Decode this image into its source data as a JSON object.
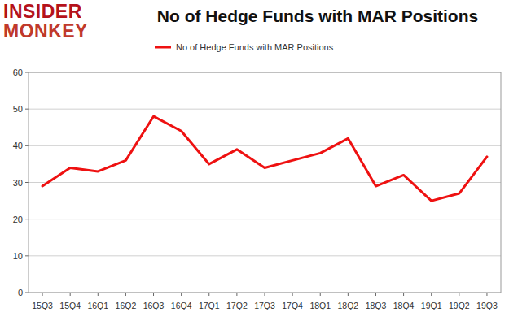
{
  "chart_data": {
    "type": "line",
    "title": "No of Hedge Funds with MAR Positions",
    "logo": [
      "INSIDER",
      "MONKEY"
    ],
    "categories": [
      "15Q3",
      "15Q4",
      "16Q1",
      "16Q2",
      "16Q3",
      "16Q4",
      "17Q1",
      "17Q2",
      "17Q3",
      "17Q4",
      "18Q1",
      "18Q2",
      "18Q3",
      "18Q4",
      "19Q1",
      "19Q2",
      "19Q3"
    ],
    "series": [
      {
        "name": "No of Hedge Funds with MAR Positions",
        "color": "#ee1111",
        "values": [
          29,
          34,
          33,
          36,
          48,
          44,
          35,
          39,
          34,
          36,
          38,
          42,
          29,
          32,
          25,
          27,
          37
        ]
      }
    ],
    "ylim": [
      0,
      60
    ],
    "yticks": [
      0,
      10,
      20,
      30,
      40,
      50,
      60
    ],
    "grid": true,
    "legend": "top"
  }
}
